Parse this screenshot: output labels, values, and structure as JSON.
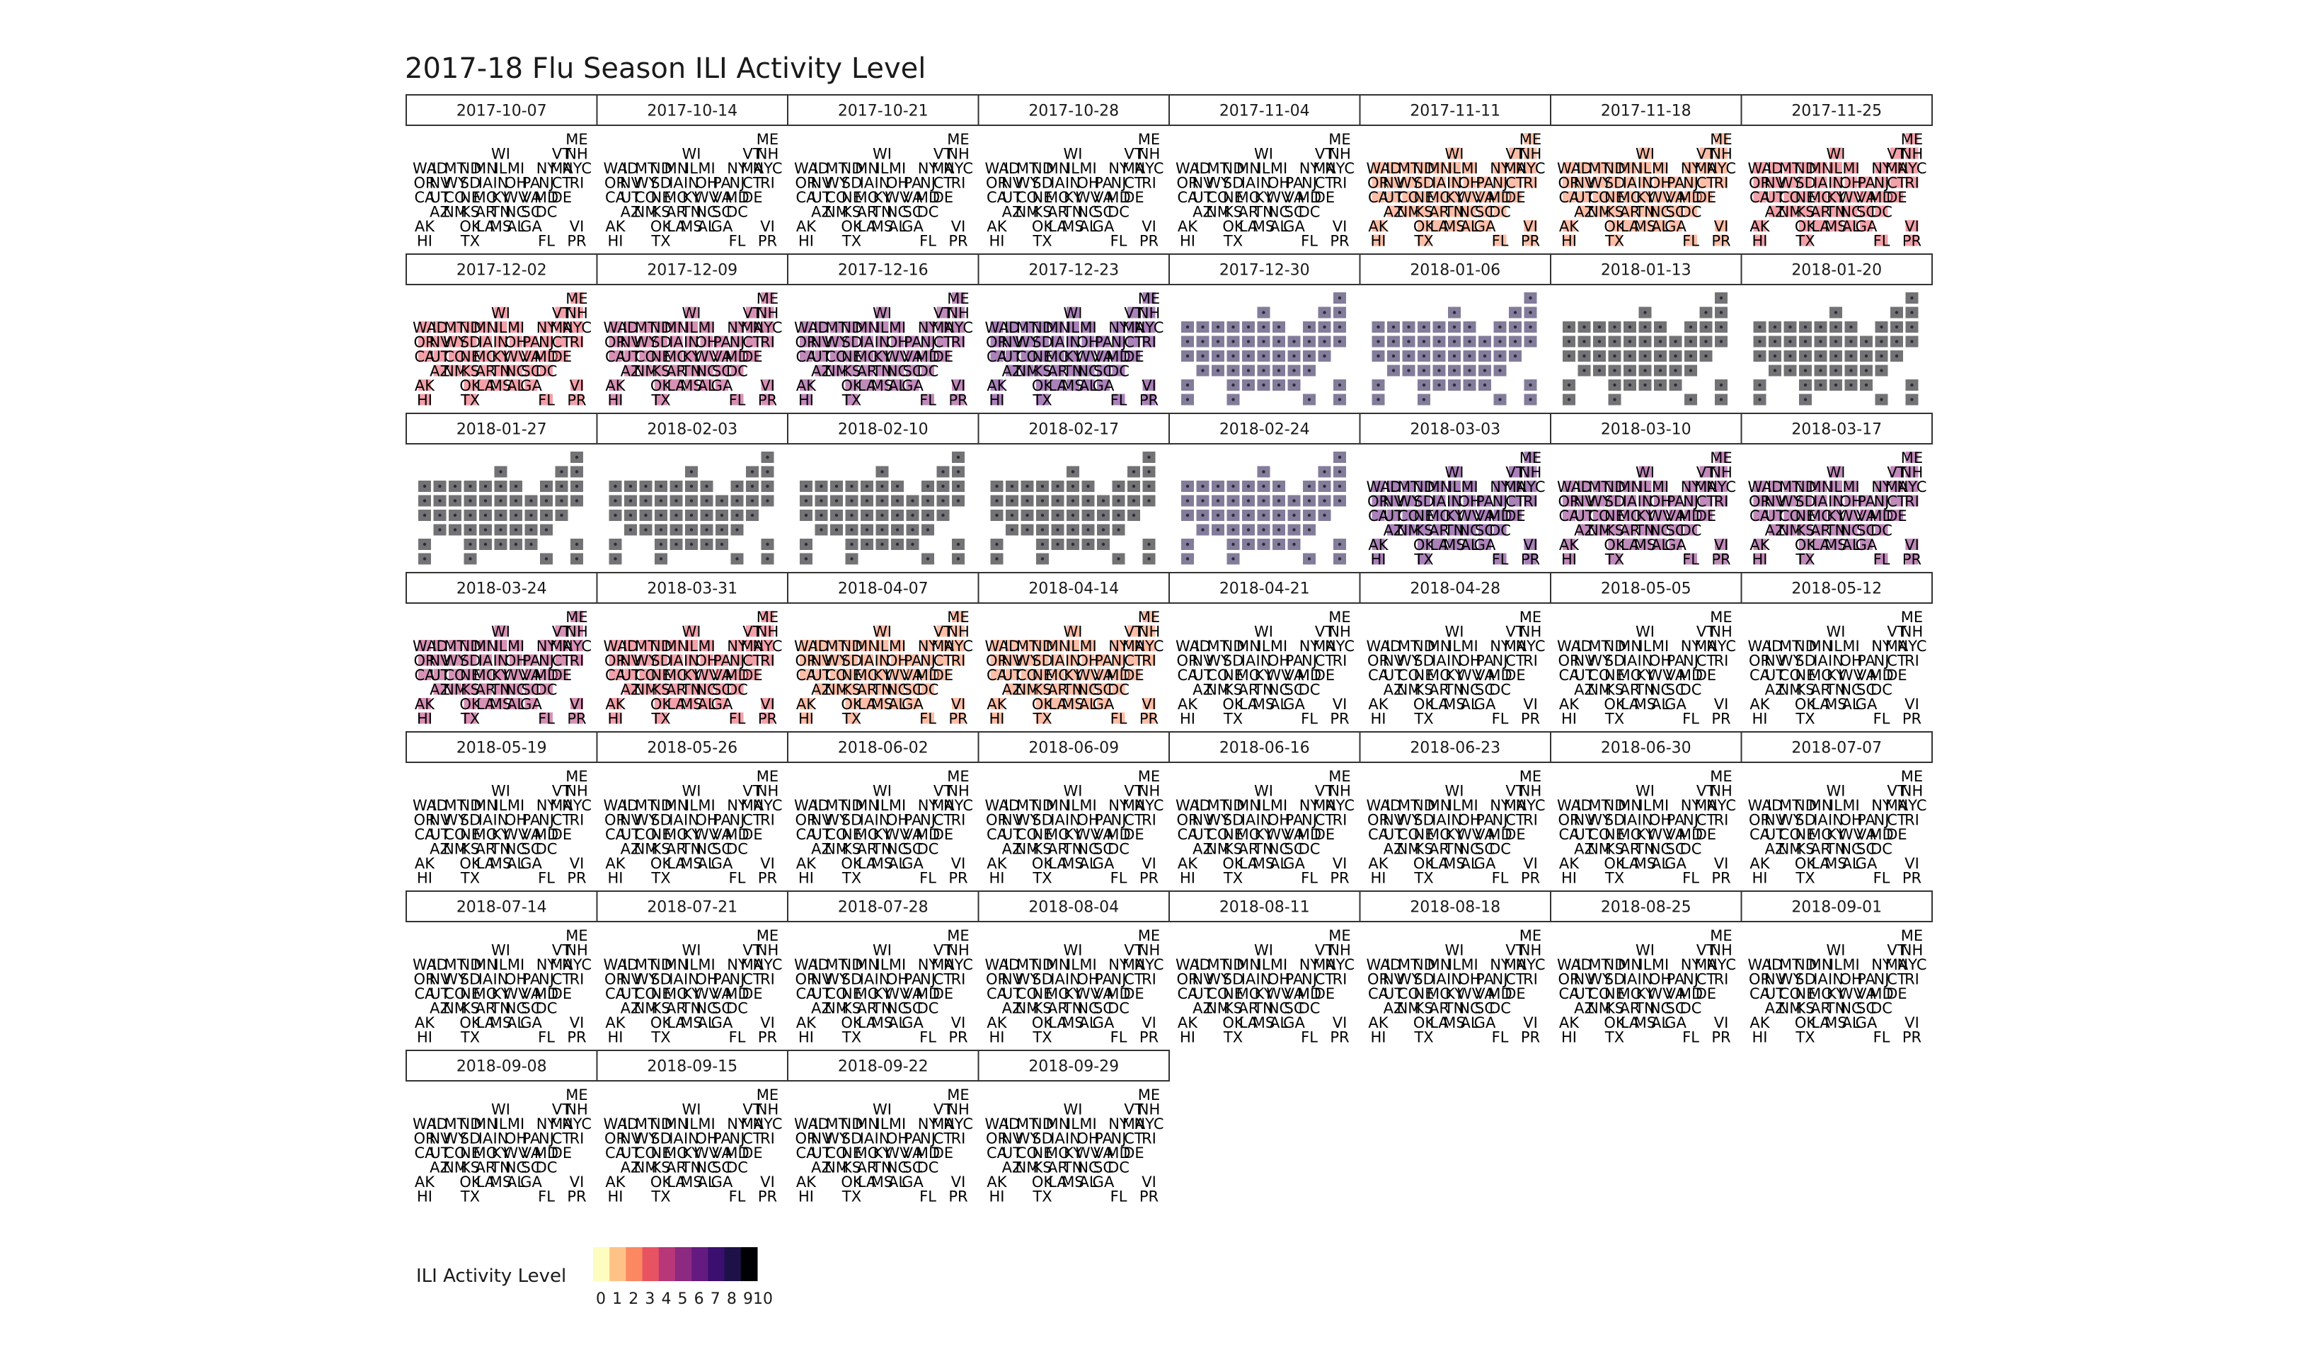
{
  "chart_data": {
    "type": "heatmap",
    "title": "2017-18 Flu Season ILI Activity Level",
    "subtitle": "",
    "xlabel": "",
    "ylabel": "",
    "grid": false,
    "facet_by": "week",
    "weeks": [
      "2017-10-07",
      "2017-10-14",
      "2017-10-21",
      "2017-10-28",
      "2017-11-04",
      "2017-11-11",
      "2017-11-18",
      "2017-11-25",
      "2017-12-02",
      "2017-12-09",
      "2017-12-16",
      "2017-12-23",
      "2017-12-30",
      "2018-01-06",
      "2018-01-13",
      "2018-01-20",
      "2018-01-27",
      "2018-02-03",
      "2018-02-10",
      "2018-02-17",
      "2018-02-24",
      "2018-03-03",
      "2018-03-10",
      "2018-03-17",
      "2018-03-24",
      "2018-03-31",
      "2018-04-07",
      "2018-04-14",
      "2018-04-21",
      "2018-04-28",
      "2018-05-05",
      "2018-05-12",
      "2018-05-19",
      "2018-05-26",
      "2018-06-02",
      "2018-06-09",
      "2018-06-16",
      "2018-06-23",
      "2018-06-30",
      "2018-07-07",
      "2018-07-14",
      "2018-07-21",
      "2018-07-28",
      "2018-08-04",
      "2018-08-11",
      "2018-08-18",
      "2018-08-25",
      "2018-09-01",
      "2018-09-08",
      "2018-09-15",
      "2018-09-22",
      "2018-09-29"
    ],
    "states": [
      "ME",
      "WI",
      "VT",
      "NH",
      "WA",
      "ID",
      "MT",
      "ND",
      "MN",
      "IL",
      "MI",
      "NY",
      "MA",
      "NYC",
      "OR",
      "NV",
      "WY",
      "SD",
      "IA",
      "IN",
      "OH",
      "PA",
      "NJ",
      "CT",
      "RI",
      "CA",
      "UT",
      "CO",
      "NE",
      "MO",
      "KY",
      "WV",
      "VA",
      "MD",
      "DE",
      "AZ",
      "NM",
      "KS",
      "AR",
      "TN",
      "NC",
      "SC",
      "DC",
      "AK",
      "OK",
      "LA",
      "MS",
      "AL",
      "GA",
      "VI",
      "HI",
      "TX",
      "FL",
      "PR"
    ],
    "grid_positions": [
      {
        "state": "ME",
        "col": 10,
        "row": 0
      },
      {
        "state": "WI",
        "col": 5,
        "row": 1
      },
      {
        "state": "VT",
        "col": 9,
        "row": 1
      },
      {
        "state": "NH",
        "col": 10,
        "row": 1
      },
      {
        "state": "WA",
        "col": 0,
        "row": 2
      },
      {
        "state": "ID",
        "col": 1,
        "row": 2
      },
      {
        "state": "MT",
        "col": 2,
        "row": 2
      },
      {
        "state": "ND",
        "col": 3,
        "row": 2
      },
      {
        "state": "MN",
        "col": 4,
        "row": 2
      },
      {
        "state": "IL",
        "col": 5,
        "row": 2
      },
      {
        "state": "MI",
        "col": 6,
        "row": 2
      },
      {
        "state": "NY",
        "col": 8,
        "row": 2
      },
      {
        "state": "MA",
        "col": 9,
        "row": 2
      },
      {
        "state": "NYC",
        "col": 10,
        "row": 2
      },
      {
        "state": "OR",
        "col": 0,
        "row": 3
      },
      {
        "state": "NV",
        "col": 1,
        "row": 3
      },
      {
        "state": "WY",
        "col": 2,
        "row": 3
      },
      {
        "state": "SD",
        "col": 3,
        "row": 3
      },
      {
        "state": "IA",
        "col": 4,
        "row": 3
      },
      {
        "state": "IN",
        "col": 5,
        "row": 3
      },
      {
        "state": "OH",
        "col": 6,
        "row": 3
      },
      {
        "state": "PA",
        "col": 7,
        "row": 3
      },
      {
        "state": "NJ",
        "col": 8,
        "row": 3
      },
      {
        "state": "CT",
        "col": 9,
        "row": 3
      },
      {
        "state": "RI",
        "col": 10,
        "row": 3
      },
      {
        "state": "CA",
        "col": 0,
        "row": 4
      },
      {
        "state": "UT",
        "col": 1,
        "row": 4
      },
      {
        "state": "CO",
        "col": 2,
        "row": 4
      },
      {
        "state": "NE",
        "col": 3,
        "row": 4
      },
      {
        "state": "MO",
        "col": 4,
        "row": 4
      },
      {
        "state": "KY",
        "col": 5,
        "row": 4
      },
      {
        "state": "WV",
        "col": 6,
        "row": 4
      },
      {
        "state": "VA",
        "col": 7,
        "row": 4
      },
      {
        "state": "MD",
        "col": 8,
        "row": 4
      },
      {
        "state": "DE",
        "col": 9,
        "row": 4
      },
      {
        "state": "AZ",
        "col": 1,
        "row": 5
      },
      {
        "state": "NM",
        "col": 2,
        "row": 5
      },
      {
        "state": "KS",
        "col": 3,
        "row": 5
      },
      {
        "state": "AR",
        "col": 4,
        "row": 5
      },
      {
        "state": "TN",
        "col": 5,
        "row": 5
      },
      {
        "state": "NC",
        "col": 6,
        "row": 5
      },
      {
        "state": "SC",
        "col": 7,
        "row": 5
      },
      {
        "state": "DC",
        "col": 8,
        "row": 5
      },
      {
        "state": "AK",
        "col": 0,
        "row": 6
      },
      {
        "state": "OK",
        "col": 3,
        "row": 6
      },
      {
        "state": "LA",
        "col": 4,
        "row": 6
      },
      {
        "state": "MS",
        "col": 5,
        "row": 6
      },
      {
        "state": "AL",
        "col": 6,
        "row": 6
      },
      {
        "state": "GA",
        "col": 7,
        "row": 6
      },
      {
        "state": "VI",
        "col": 10,
        "row": 6
      },
      {
        "state": "HI",
        "col": 0,
        "row": 7
      },
      {
        "state": "TX",
        "col": 3,
        "row": 7
      },
      {
        "state": "FL",
        "col": 8,
        "row": 7
      },
      {
        "state": "PR",
        "col": 10,
        "row": 7
      }
    ],
    "activity_by_week": {
      "2017-10-07": 1,
      "2017-10-14": 1,
      "2017-10-21": 1,
      "2017-10-28": 1,
      "2017-11-04": 1,
      "2017-11-11": 2,
      "2017-11-18": 2,
      "2017-11-25": 3,
      "2017-12-02": 3,
      "2017-12-09": 4,
      "2017-12-16": 5,
      "2017-12-23": 7,
      "2017-12-30": 9,
      "2018-01-06": 9,
      "2018-01-13": 10,
      "2018-01-20": 10,
      "2018-01-27": 10,
      "2018-02-03": 10,
      "2018-02-10": 10,
      "2018-02-17": 10,
      "2018-02-24": 9,
      "2018-03-03": 7,
      "2018-03-10": 6,
      "2018-03-17": 5,
      "2018-03-24": 4,
      "2018-03-31": 3,
      "2018-04-07": 2,
      "2018-04-14": 2,
      "2018-04-21": 1,
      "2018-04-28": 1,
      "2018-05-05": 1,
      "2018-05-12": 1,
      "2018-05-19": 1,
      "2018-05-26": 1,
      "2018-06-02": 1,
      "2018-06-09": 1,
      "2018-06-16": 1,
      "2018-06-23": 1,
      "2018-06-30": 1,
      "2018-07-07": 1,
      "2018-07-14": 1,
      "2018-07-21": 1,
      "2018-07-28": 1,
      "2018-08-04": 1,
      "2018-08-11": 1,
      "2018-08-18": 1,
      "2018-08-25": 1,
      "2018-09-01": 1,
      "2018-09-08": 1,
      "2018-09-15": 1,
      "2018-09-22": 1,
      "2018-09-29": 1
    },
    "legend": {
      "title": "ILI Activity Level",
      "position": "bottom-left",
      "ticks": [
        "0",
        "1",
        "2",
        "3",
        "4",
        "5",
        "6",
        "7",
        "8",
        "910"
      ],
      "range": [
        0,
        10
      ],
      "colors": [
        "#fcfdbf",
        "#fec287",
        "#fb8861",
        "#e85362",
        "#b73779",
        "#8c2981",
        "#641a80",
        "#3b0f70",
        "#1d1147",
        "#000004"
      ]
    }
  }
}
